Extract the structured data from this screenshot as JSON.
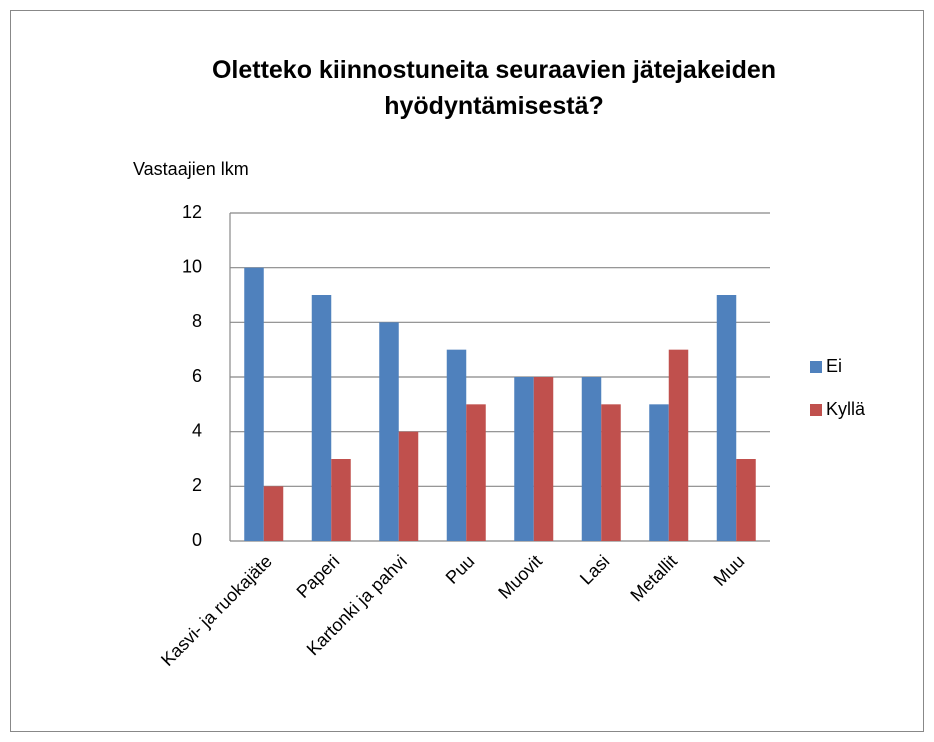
{
  "chart_data": {
    "type": "bar",
    "title": "Oletteko kiinnostuneita seuraavien jätejakeiden hyödyntämisestä?",
    "y_label": "Vastaajien lkm",
    "categories": [
      "Kasvi- ja ruokajäte",
      "Paperi",
      "Kartonki ja pahvi",
      "Puu",
      "Muovit",
      "Lasi",
      "Metallit",
      "Muu"
    ],
    "series": [
      {
        "name": "Ei",
        "color": "#4f81bd",
        "values": [
          10,
          9,
          8,
          7,
          6,
          6,
          5,
          9
        ]
      },
      {
        "name": "Kyllä",
        "color": "#c0504d",
        "values": [
          2,
          3,
          4,
          5,
          6,
          5,
          7,
          3
        ]
      }
    ],
    "ylim": [
      0,
      12
    ],
    "yticks": [
      0,
      2,
      4,
      6,
      8,
      10,
      12
    ],
    "grid": true,
    "legend": "right"
  }
}
